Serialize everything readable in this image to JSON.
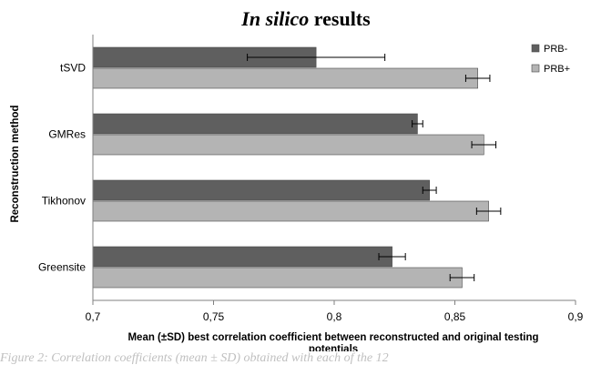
{
  "chart_data": {
    "type": "bar",
    "orientation": "horizontal",
    "title_italic": "In silico",
    "title_rest": " results",
    "ylabel": "Reconstruction method",
    "xlabel_line1": "Mean (±SD) best correlation coefficient between reconstructed and original testing",
    "xlabel_line2": "potentials",
    "categories": [
      "tSVD",
      "GMRes",
      "Tikhonov",
      "Greensite"
    ],
    "series": [
      {
        "name": "PRB-",
        "color": "#5f5f5f",
        "values": [
          0.7925,
          0.8345,
          0.8395,
          0.824
        ],
        "errors": [
          0.0285,
          0.0022,
          0.0028,
          0.0055
        ]
      },
      {
        "name": "PRB+",
        "color": "#b4b4b4",
        "values": [
          0.8595,
          0.862,
          0.864,
          0.853
        ],
        "errors": [
          0.005,
          0.005,
          0.005,
          0.005
        ]
      }
    ],
    "xlim": [
      0.7,
      0.9
    ],
    "xticks": [
      "0,7",
      "0,75",
      "0,8",
      "0,85",
      "0,9"
    ],
    "xtick_values": [
      0.7,
      0.75,
      0.8,
      0.85,
      0.9
    ],
    "legend_position": "right",
    "grid": false
  },
  "caption": "Figure 2: Correlation coefficients (mean ± SD) obtained with each of the 12"
}
